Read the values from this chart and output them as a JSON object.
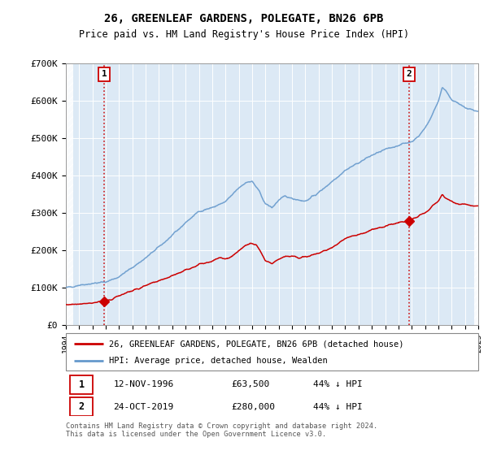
{
  "title": "26, GREENLEAF GARDENS, POLEGATE, BN26 6PB",
  "subtitle": "Price paid vs. HM Land Registry's House Price Index (HPI)",
  "legend_line1": "26, GREENLEAF GARDENS, POLEGATE, BN26 6PB (detached house)",
  "legend_line2": "HPI: Average price, detached house, Wealden",
  "note1_date": "12-NOV-1996",
  "note1_price": "£63,500",
  "note1_hpi": "44% ↓ HPI",
  "note2_date": "24-OCT-2019",
  "note2_price": "£280,000",
  "note2_hpi": "44% ↓ HPI",
  "footnote": "Contains HM Land Registry data © Crown copyright and database right 2024.\nThis data is licensed under the Open Government Licence v3.0.",
  "hpi_color": "#6699cc",
  "price_color": "#cc0000",
  "marker_color": "#cc0000",
  "plot_bg": "#dce9f5",
  "ylim": [
    0,
    700000
  ],
  "yticks": [
    0,
    100000,
    200000,
    300000,
    400000,
    500000,
    600000,
    700000
  ],
  "ytick_labels": [
    "£0",
    "£100K",
    "£200K",
    "£300K",
    "£400K",
    "£500K",
    "£600K",
    "£700K"
  ],
  "vline1_year": 1996.87,
  "vline2_year": 2019.81,
  "sale1_year": 1996.87,
  "sale1_price": 63500,
  "sale2_year": 2019.81,
  "sale2_price": 280000
}
